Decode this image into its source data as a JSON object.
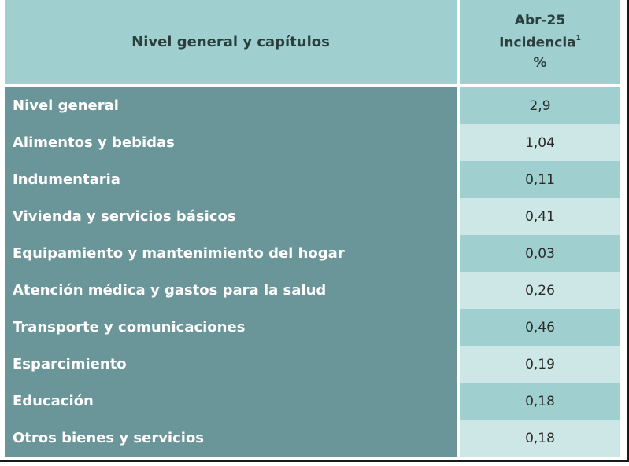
{
  "header": {
    "col1": "Nivel general y capítulos",
    "col2_line1": "Abr-25",
    "col2_line2": "Incidencia",
    "col2_sup": "1",
    "col2_line3": "%"
  },
  "rows": [
    {
      "label": "Nivel general",
      "value": "2,9"
    },
    {
      "label": "Alimentos y bebidas",
      "value": "1,04"
    },
    {
      "label": "Indumentaria",
      "value": "0,11"
    },
    {
      "label": "Vivienda y servicios básicos",
      "value": "0,41"
    },
    {
      "label": "Equipamiento y mantenimiento del hogar",
      "value": "0,03"
    },
    {
      "label": "Atención médica y gastos para la salud",
      "value": "0,26"
    },
    {
      "label": "Transporte y comunicaciones",
      "value": "0,46"
    },
    {
      "label": "Esparcimiento",
      "value": "0,19"
    },
    {
      "label": "Educación",
      "value": "0,18"
    },
    {
      "label": "Otros bienes y servicios",
      "value": "0,18"
    }
  ],
  "colors": {
    "header_bg": "#9fd0cf",
    "label_bg": "#6a9599",
    "value_dark": "#9fd0cf",
    "value_light": "#cde7e6"
  }
}
